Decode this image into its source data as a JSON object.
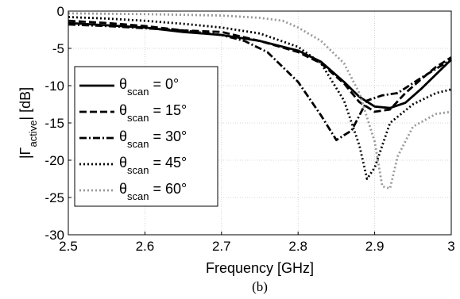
{
  "chart_data": {
    "type": "line",
    "xlabel": "Frequency [GHz]",
    "ylabel": "|Γactive| [dB]",
    "ylabel_parts": {
      "prefix": "|Γ",
      "subscript": "active",
      "suffix": "| [dB]"
    },
    "caption": "(b)",
    "xlim": [
      2.5,
      3.0
    ],
    "ylim": [
      -30,
      0
    ],
    "xticks": [
      2.5,
      2.6,
      2.7,
      2.8,
      2.9,
      3.0
    ],
    "xtick_labels": [
      "2.5",
      "2.6",
      "2.7",
      "2.8",
      "2.9",
      "3"
    ],
    "yticks": [
      0,
      -5,
      -10,
      -15,
      -20,
      -25,
      -30
    ],
    "ytick_labels": [
      "0",
      "-5",
      "-10",
      "-15",
      "-20",
      "-25",
      "-30"
    ],
    "grid": true,
    "legend_position": "left",
    "series": [
      {
        "name": "θscan = 0°",
        "label_parts": {
          "symbol": "θ",
          "subscript": "scan",
          "rest": " = 0°"
        },
        "color": "#000000",
        "dash": "solid",
        "x": [
          2.5,
          2.55,
          2.6,
          2.65,
          2.7,
          2.75,
          2.8,
          2.83,
          2.86,
          2.88,
          2.9,
          2.92,
          2.94,
          2.96,
          2.98,
          3.0
        ],
        "y": [
          -1.6,
          -1.9,
          -2.2,
          -2.8,
          -3.2,
          -4.0,
          -5.3,
          -6.8,
          -9.5,
          -11.5,
          -12.8,
          -13.0,
          -12.3,
          -10.5,
          -8.5,
          -6.5
        ]
      },
      {
        "name": "θscan = 15°",
        "label_parts": {
          "symbol": "θ",
          "subscript": "scan",
          "rest": " = 15°"
        },
        "color": "#000000",
        "dash": "dashed",
        "x": [
          2.5,
          2.55,
          2.6,
          2.65,
          2.7,
          2.75,
          2.8,
          2.83,
          2.86,
          2.88,
          2.9,
          2.92,
          2.94,
          2.96,
          2.98,
          3.0
        ],
        "y": [
          -1.3,
          -1.6,
          -2.0,
          -2.6,
          -2.8,
          -4.0,
          -5.5,
          -7.0,
          -9.7,
          -12.2,
          -13.5,
          -13.2,
          -11.0,
          -9.2,
          -7.5,
          -6.2
        ]
      },
      {
        "name": "θscan = 30°",
        "label_parts": {
          "symbol": "θ",
          "subscript": "scan",
          "rest": " = 30°"
        },
        "color": "#000000",
        "dash": "dashdot",
        "x": [
          2.5,
          2.55,
          2.6,
          2.65,
          2.7,
          2.73,
          2.76,
          2.8,
          2.83,
          2.85,
          2.87,
          2.89,
          2.91,
          2.93,
          2.96,
          3.0
        ],
        "y": [
          -1.8,
          -2.0,
          -2.3,
          -2.6,
          -3.2,
          -4.0,
          -5.5,
          -9.5,
          -14.0,
          -17.3,
          -16.0,
          -12.0,
          -11.3,
          -11.0,
          -9.0,
          -6.5
        ]
      },
      {
        "name": "θscan = 45°",
        "label_parts": {
          "symbol": "θ",
          "subscript": "scan",
          "rest": " = 45°"
        },
        "color": "#000000",
        "dash": "dotted",
        "x": [
          2.5,
          2.55,
          2.6,
          2.65,
          2.7,
          2.75,
          2.8,
          2.83,
          2.86,
          2.88,
          2.89,
          2.9,
          2.92,
          2.95,
          2.98,
          3.0
        ],
        "y": [
          -0.8,
          -1.0,
          -1.3,
          -1.7,
          -2.2,
          -3.0,
          -4.8,
          -7.0,
          -12.0,
          -18.0,
          -22.5,
          -21.0,
          -15.0,
          -12.5,
          -11.0,
          -10.5
        ]
      },
      {
        "name": "θscan = 60°",
        "label_parts": {
          "symbol": "θ",
          "subscript": "scan",
          "rest": " = 60°"
        },
        "color": "#999999",
        "dash": "dotted",
        "x": [
          2.5,
          2.6,
          2.7,
          2.75,
          2.78,
          2.8,
          2.83,
          2.86,
          2.88,
          2.9,
          2.91,
          2.92,
          2.93,
          2.95,
          2.98,
          3.0
        ],
        "y": [
          -0.3,
          -0.4,
          -0.6,
          -0.9,
          -1.3,
          -2.2,
          -4.0,
          -7.0,
          -11.0,
          -17.5,
          -23.5,
          -23.8,
          -19.5,
          -15.5,
          -13.8,
          -13.5
        ]
      }
    ]
  }
}
